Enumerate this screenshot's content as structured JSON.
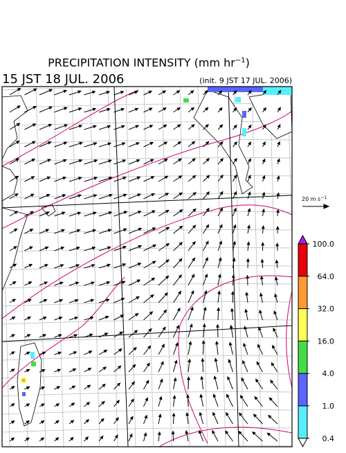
{
  "header": {
    "title": "PRECIPITATION INTENSITY (mm hr",
    "title_exponent": "−1",
    "title_end": ")",
    "valid_time": "15 JST 18 JUL. 2006",
    "init_time": "(init. 9 JST 17 JUL. 2006)"
  },
  "reference_vector": {
    "label": "20 m s",
    "label_exponent": "−1"
  },
  "colorbar": {
    "ticks": [
      {
        "value": 100,
        "label": "100.0"
      },
      {
        "value": 64,
        "label": "64.0"
      },
      {
        "value": 32,
        "label": "32.0"
      },
      {
        "value": 16,
        "label": "16.0"
      },
      {
        "value": 4,
        "label": "4.0"
      },
      {
        "value": 1,
        "label": "1.0"
      },
      {
        "value": 0.4,
        "label": "0.4"
      }
    ],
    "over_color": "#a020f0",
    "colors": [
      "#e8000b",
      "#ff9933",
      "#ffff55",
      "#44dd44",
      "#5a64ff",
      "#55eeff"
    ],
    "under_color": "#ffffff"
  }
}
